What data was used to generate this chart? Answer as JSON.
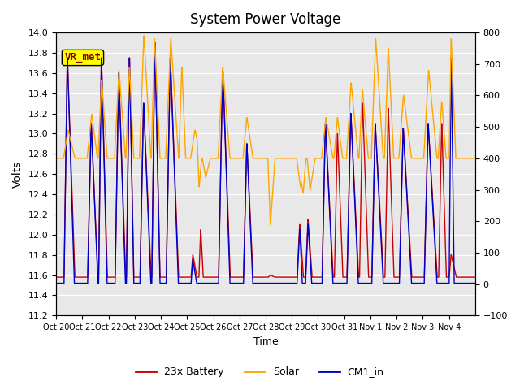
{
  "title": "System Power Voltage",
  "xlabel": "Time",
  "ylabel_left": "Volts",
  "ylim_left": [
    11.2,
    14.0
  ],
  "ylim_right": [
    -100,
    800
  ],
  "yticks_left": [
    11.2,
    11.4,
    11.6,
    11.8,
    12.0,
    12.2,
    12.4,
    12.6,
    12.8,
    13.0,
    13.2,
    13.4,
    13.6,
    13.8,
    14.0
  ],
  "yticks_right": [
    -100,
    0,
    100,
    200,
    300,
    400,
    500,
    600,
    700,
    800
  ],
  "xtick_labels": [
    "Oct 20",
    "Oct 21",
    "Oct 22",
    "Oct 23",
    "Oct 24",
    "Oct 25",
    "Oct 26",
    "Oct 27",
    "Oct 28",
    "Oct 29",
    "Oct 30",
    "Oct 31",
    "Nov 1",
    "Nov 2",
    "Nov 3",
    "Nov 4"
  ],
  "annotation": "VR_met",
  "bg_color": "#e8e8e8",
  "line_colors": {
    "battery": "#cc0000",
    "solar": "#ffa500",
    "cm1": "#0000cc"
  },
  "legend_labels": [
    "23x Battery",
    "Solar",
    "CM1_in"
  ],
  "n_days": 16,
  "pts_per_day": 200
}
